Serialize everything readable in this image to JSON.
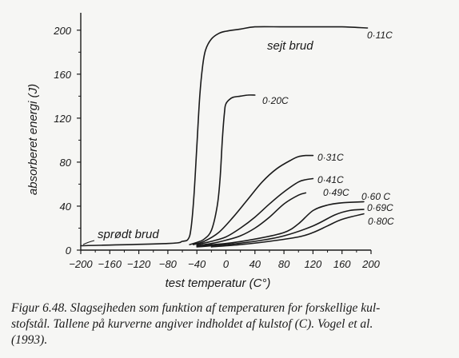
{
  "chart_data": {
    "type": "line",
    "xlabel": "test temperatur (C°)",
    "ylabel": "absorberet energi (J)",
    "xlim": [
      -200,
      200
    ],
    "ylim": [
      0,
      210
    ],
    "xticks": [
      "−200",
      "−160",
      "−120",
      "−80",
      "−40",
      "0",
      "40",
      "80",
      "120",
      "160",
      "200"
    ],
    "yticks": [
      "0",
      "40",
      "80",
      "120",
      "160",
      "200"
    ],
    "grid": false,
    "series": [
      {
        "name": "0·11C",
        "x": [
          -200,
          -80,
          -60,
          -52,
          -48,
          -44,
          -40,
          -36,
          -32,
          -28,
          -20,
          -10,
          0,
          20,
          40,
          80,
          120,
          160,
          195
        ],
        "y": [
          4,
          6,
          8,
          10,
          20,
          50,
          95,
          140,
          168,
          182,
          192,
          197,
          199,
          201,
          203,
          203,
          203,
          203,
          202
        ]
      },
      {
        "name": "0·20C",
        "x": [
          -50,
          -40,
          -30,
          -20,
          -12,
          -8,
          -5,
          -2,
          0,
          5,
          10,
          20,
          30,
          40
        ],
        "y": [
          5,
          7,
          10,
          18,
          40,
          65,
          100,
          125,
          133,
          137,
          139,
          140,
          141,
          141
        ]
      },
      {
        "name": "0·31C",
        "x": [
          -45,
          -30,
          -10,
          10,
          30,
          50,
          70,
          90,
          100,
          110,
          120
        ],
        "y": [
          5,
          8,
          16,
          30,
          46,
          62,
          74,
          82,
          85,
          86,
          86
        ]
      },
      {
        "name": "0·41C",
        "x": [
          -40,
          -20,
          0,
          20,
          40,
          60,
          80,
          100,
          110,
          120
        ],
        "y": [
          5,
          8,
          12,
          20,
          30,
          42,
          53,
          62,
          64,
          65
        ]
      },
      {
        "name": "0·49C",
        "x": [
          -40,
          -20,
          0,
          20,
          40,
          60,
          80,
          100,
          110
        ],
        "y": [
          4,
          6,
          9,
          13,
          20,
          30,
          42,
          50,
          52
        ]
      },
      {
        "name": "0·60 C",
        "x": [
          -40,
          0,
          40,
          80,
          100,
          120,
          140,
          160,
          190
        ],
        "y": [
          4,
          6,
          10,
          16,
          24,
          36,
          41,
          43,
          44
        ]
      },
      {
        "name": "0·69C",
        "x": [
          -40,
          0,
          40,
          80,
          120,
          150,
          170,
          190
        ],
        "y": [
          3,
          5,
          8,
          13,
          22,
          32,
          36,
          37
        ]
      },
      {
        "name": "0·80C",
        "x": [
          -20,
          20,
          60,
          100,
          120,
          140,
          160,
          190
        ],
        "y": [
          3,
          5,
          8,
          12,
          16,
          22,
          28,
          33
        ]
      }
    ],
    "annotations": [
      "sejt brud",
      "sprødt brud"
    ]
  },
  "caption": {
    "lines": [
      "Figur 6.48. Slagsejheden som funktion af temperaturen for forskellige kul-",
      "stofstål. Tallene på kurverne angiver indholdet af kulstof (C). Vogel et al.",
      "(1993)."
    ]
  }
}
